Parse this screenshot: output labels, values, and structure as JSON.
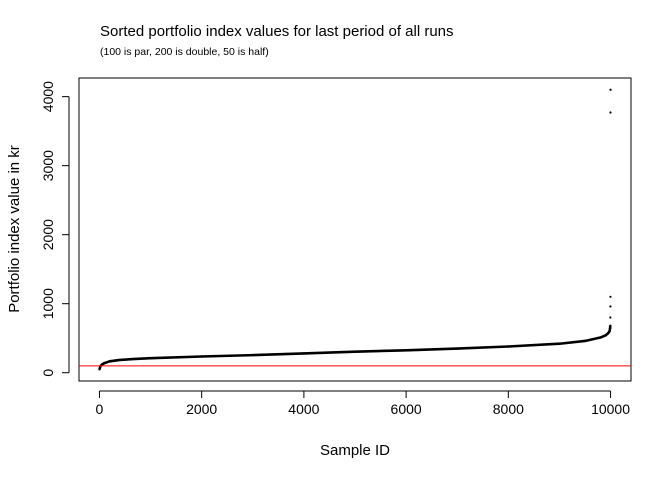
{
  "chart_data": {
    "type": "scatter",
    "title": "Sorted portfolio index values for last period of all runs",
    "subtitle": "(100 is par, 200 is double, 50 is half)",
    "xlabel": "Sample ID",
    "ylabel": "Portfolio index value in kr",
    "xlim": [
      -400,
      10400
    ],
    "ylim": [
      -120,
      4270
    ],
    "x_ticks": [
      0,
      2000,
      4000,
      6000,
      8000,
      10000
    ],
    "y_ticks": [
      0,
      1000,
      2000,
      3000,
      4000
    ],
    "grid": false,
    "point_color": "#000000",
    "reference_line": {
      "y": 100,
      "color": "#ff0000"
    },
    "series_curve": {
      "x": [
        1,
        20,
        50,
        100,
        200,
        400,
        700,
        1000,
        2000,
        3000,
        4000,
        5000,
        6000,
        7000,
        8000,
        9000,
        9500,
        9800,
        9900,
        9950,
        9980,
        9990,
        9995
      ],
      "y": [
        50,
        95,
        120,
        140,
        165,
        185,
        200,
        210,
        235,
        255,
        280,
        305,
        325,
        350,
        380,
        420,
        460,
        510,
        540,
        570,
        600,
        640,
        680
      ]
    },
    "series_outliers": {
      "x": [
        9996,
        9997,
        9998,
        9999,
        10000
      ],
      "y": [
        800,
        960,
        1100,
        3770,
        4100
      ]
    }
  }
}
